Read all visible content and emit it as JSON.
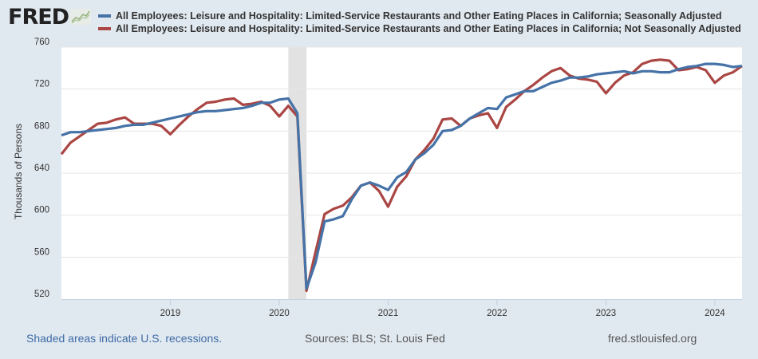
{
  "header": {
    "logo_text": "FRED",
    "logo_icon": "trend-chart-icon"
  },
  "footer": {
    "recession_note": "Shaded areas indicate U.S. recessions.",
    "sources": "Sources: BLS; St. Louis Fed",
    "site": "fred.stlouisfed.org"
  },
  "colors": {
    "series_sa": "#4572a7",
    "series_nsa": "#aa4643",
    "recession": "#e2e2e2",
    "background": "#e1e9f0",
    "link": "#3e6ba6"
  },
  "chart_data": {
    "type": "line",
    "title": "",
    "xlabel": "",
    "ylabel": "Thousands of Persons",
    "x_start": "2018-01",
    "x_end": "2024-04",
    "frequency": "monthly",
    "ylim": [
      520,
      760
    ],
    "yticks": [
      520,
      560,
      600,
      640,
      680,
      720,
      760
    ],
    "xticks": [
      "2019",
      "2020",
      "2021",
      "2022",
      "2023",
      "2024"
    ],
    "grid": true,
    "legend_position": "top",
    "recessions": [
      {
        "start": "2020-02",
        "end": "2020-04"
      }
    ],
    "series": [
      {
        "name": "All Employees: Leisure and Hospitality: Limited-Service Restaurants and Other Eating Places in California; Seasonally Adjusted",
        "values": [
          676,
          679,
          679,
          680,
          681,
          682,
          683,
          685,
          686,
          686,
          688,
          690,
          692,
          694,
          696,
          698,
          699,
          699,
          700,
          701,
          702,
          704,
          707,
          707,
          710,
          711,
          697,
          530,
          555,
          594,
          596,
          599,
          615,
          628,
          631,
          628,
          624,
          636,
          641,
          653,
          659,
          667,
          680,
          681,
          685,
          692,
          697,
          702,
          701,
          712,
          715,
          718,
          718,
          722,
          726,
          728,
          731,
          731,
          732,
          734,
          735,
          736,
          737,
          735,
          737,
          737,
          736,
          736,
          739,
          741,
          742,
          744,
          744,
          743,
          741,
          742
        ]
      },
      {
        "name": "All Employees: Leisure and Hospitality: Limited-Service Restaurants and Other Eating Places in California; Not Seasonally Adjusted",
        "values": [
          658,
          669,
          675,
          681,
          687,
          688,
          691,
          693,
          687,
          687,
          687,
          685,
          677,
          686,
          694,
          701,
          707,
          708,
          710,
          711,
          705,
          706,
          708,
          704,
          694,
          704,
          694,
          528,
          565,
          601,
          606,
          609,
          617,
          628,
          631,
          623,
          608,
          627,
          637,
          653,
          662,
          673,
          691,
          692,
          685,
          692,
          695,
          697,
          683,
          703,
          710,
          718,
          724,
          731,
          737,
          740,
          733,
          730,
          729,
          727,
          716,
          726,
          733,
          736,
          744,
          747,
          748,
          747,
          738,
          739,
          741,
          738,
          726,
          733,
          736,
          742
        ]
      }
    ]
  }
}
